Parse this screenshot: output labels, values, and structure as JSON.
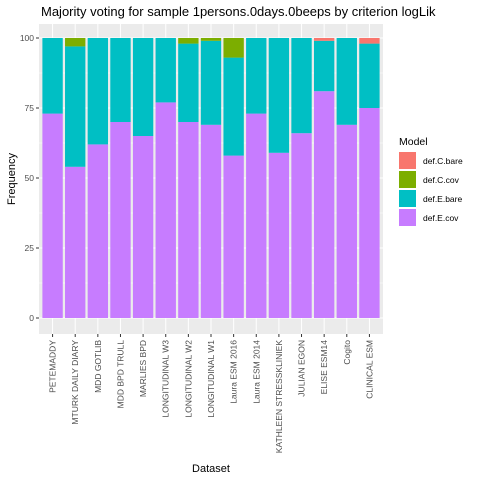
{
  "chart_data": {
    "type": "bar",
    "stacked": true,
    "title": "Majority voting for sample 1persons.0days.0beeps by criterion logLik",
    "xlabel": "Dataset",
    "ylabel": "Frequency",
    "ylim": [
      0,
      100
    ],
    "y_ticks": [
      0,
      25,
      50,
      75,
      100
    ],
    "grid": true,
    "legend": {
      "title": "Model",
      "placement": "right"
    },
    "categories": [
      "PETEMADDY",
      "MTURK DAILY DIARY",
      "MDD GOTLIB",
      "MDD BPD TRULL",
      "MARLIES BPD",
      "LONGITUDINAL W3",
      "LONGITUDINAL W2",
      "LONGITUDINAL W1",
      "Laura ESM 2016",
      "Laura ESM 2014",
      "KATHLEEN STRESSKLINIEK",
      "JULIAN EGON",
      "ELISE ESM14",
      "Cogito",
      "CLINICAL ESM"
    ],
    "series": [
      {
        "name": "def.E.cov",
        "color": "#C77CFF",
        "values": [
          73,
          54,
          62,
          70,
          65,
          77,
          70,
          69,
          58,
          73,
          59,
          66,
          81,
          69,
          75
        ]
      },
      {
        "name": "def.E.bare",
        "color": "#00BFC4",
        "values": [
          27,
          43,
          38,
          30,
          35,
          23,
          28,
          30,
          35,
          27,
          41,
          34,
          18,
          31,
          23
        ]
      },
      {
        "name": "def.C.cov",
        "color": "#7CAE00",
        "values": [
          0,
          3,
          0,
          0,
          0,
          0,
          2,
          1,
          7,
          0,
          0,
          0,
          0,
          0,
          0
        ]
      },
      {
        "name": "def.C.bare",
        "color": "#F8766D",
        "values": [
          0,
          0,
          0,
          0,
          0,
          0,
          0,
          0,
          0,
          0,
          0,
          0,
          1,
          0,
          2
        ]
      }
    ],
    "legend_order": [
      "def.C.bare",
      "def.C.cov",
      "def.E.bare",
      "def.E.cov"
    ]
  }
}
